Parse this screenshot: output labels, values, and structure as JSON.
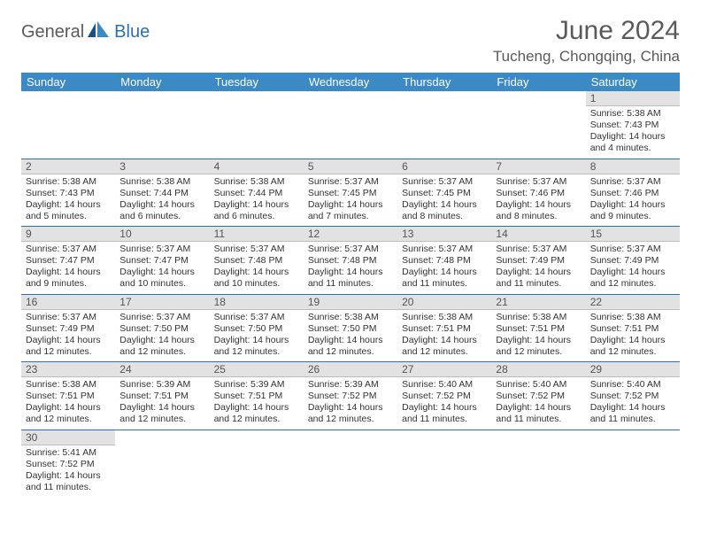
{
  "brand": {
    "part1": "General",
    "part2": "Blue"
  },
  "title": "June 2024",
  "location": "Tucheng, Chongqing, China",
  "colors": {
    "header_bg": "#3b8ac4",
    "header_fg": "#ffffff",
    "daynum_bg": "#e2e2e2",
    "rule": "#2d6fb5",
    "logo_blue": "#2d6fb5",
    "text_gray": "#5a5a5a"
  },
  "weekdays": [
    "Sunday",
    "Monday",
    "Tuesday",
    "Wednesday",
    "Thursday",
    "Friday",
    "Saturday"
  ],
  "weeks": [
    [
      null,
      null,
      null,
      null,
      null,
      null,
      {
        "d": "1",
        "sr": "5:38 AM",
        "ss": "7:43 PM",
        "dl": "14 hours and 4 minutes."
      }
    ],
    [
      {
        "d": "2",
        "sr": "5:38 AM",
        "ss": "7:43 PM",
        "dl": "14 hours and 5 minutes."
      },
      {
        "d": "3",
        "sr": "5:38 AM",
        "ss": "7:44 PM",
        "dl": "14 hours and 6 minutes."
      },
      {
        "d": "4",
        "sr": "5:38 AM",
        "ss": "7:44 PM",
        "dl": "14 hours and 6 minutes."
      },
      {
        "d": "5",
        "sr": "5:37 AM",
        "ss": "7:45 PM",
        "dl": "14 hours and 7 minutes."
      },
      {
        "d": "6",
        "sr": "5:37 AM",
        "ss": "7:45 PM",
        "dl": "14 hours and 8 minutes."
      },
      {
        "d": "7",
        "sr": "5:37 AM",
        "ss": "7:46 PM",
        "dl": "14 hours and 8 minutes."
      },
      {
        "d": "8",
        "sr": "5:37 AM",
        "ss": "7:46 PM",
        "dl": "14 hours and 9 minutes."
      }
    ],
    [
      {
        "d": "9",
        "sr": "5:37 AM",
        "ss": "7:47 PM",
        "dl": "14 hours and 9 minutes."
      },
      {
        "d": "10",
        "sr": "5:37 AM",
        "ss": "7:47 PM",
        "dl": "14 hours and 10 minutes."
      },
      {
        "d": "11",
        "sr": "5:37 AM",
        "ss": "7:48 PM",
        "dl": "14 hours and 10 minutes."
      },
      {
        "d": "12",
        "sr": "5:37 AM",
        "ss": "7:48 PM",
        "dl": "14 hours and 11 minutes."
      },
      {
        "d": "13",
        "sr": "5:37 AM",
        "ss": "7:48 PM",
        "dl": "14 hours and 11 minutes."
      },
      {
        "d": "14",
        "sr": "5:37 AM",
        "ss": "7:49 PM",
        "dl": "14 hours and 11 minutes."
      },
      {
        "d": "15",
        "sr": "5:37 AM",
        "ss": "7:49 PM",
        "dl": "14 hours and 12 minutes."
      }
    ],
    [
      {
        "d": "16",
        "sr": "5:37 AM",
        "ss": "7:49 PM",
        "dl": "14 hours and 12 minutes."
      },
      {
        "d": "17",
        "sr": "5:37 AM",
        "ss": "7:50 PM",
        "dl": "14 hours and 12 minutes."
      },
      {
        "d": "18",
        "sr": "5:37 AM",
        "ss": "7:50 PM",
        "dl": "14 hours and 12 minutes."
      },
      {
        "d": "19",
        "sr": "5:38 AM",
        "ss": "7:50 PM",
        "dl": "14 hours and 12 minutes."
      },
      {
        "d": "20",
        "sr": "5:38 AM",
        "ss": "7:51 PM",
        "dl": "14 hours and 12 minutes."
      },
      {
        "d": "21",
        "sr": "5:38 AM",
        "ss": "7:51 PM",
        "dl": "14 hours and 12 minutes."
      },
      {
        "d": "22",
        "sr": "5:38 AM",
        "ss": "7:51 PM",
        "dl": "14 hours and 12 minutes."
      }
    ],
    [
      {
        "d": "23",
        "sr": "5:38 AM",
        "ss": "7:51 PM",
        "dl": "14 hours and 12 minutes."
      },
      {
        "d": "24",
        "sr": "5:39 AM",
        "ss": "7:51 PM",
        "dl": "14 hours and 12 minutes."
      },
      {
        "d": "25",
        "sr": "5:39 AM",
        "ss": "7:51 PM",
        "dl": "14 hours and 12 minutes."
      },
      {
        "d": "26",
        "sr": "5:39 AM",
        "ss": "7:52 PM",
        "dl": "14 hours and 12 minutes."
      },
      {
        "d": "27",
        "sr": "5:40 AM",
        "ss": "7:52 PM",
        "dl": "14 hours and 11 minutes."
      },
      {
        "d": "28",
        "sr": "5:40 AM",
        "ss": "7:52 PM",
        "dl": "14 hours and 11 minutes."
      },
      {
        "d": "29",
        "sr": "5:40 AM",
        "ss": "7:52 PM",
        "dl": "14 hours and 11 minutes."
      }
    ],
    [
      {
        "d": "30",
        "sr": "5:41 AM",
        "ss": "7:52 PM",
        "dl": "14 hours and 11 minutes."
      },
      null,
      null,
      null,
      null,
      null,
      null
    ]
  ],
  "labels": {
    "sunrise": "Sunrise:",
    "sunset": "Sunset:",
    "daylight": "Daylight:"
  }
}
